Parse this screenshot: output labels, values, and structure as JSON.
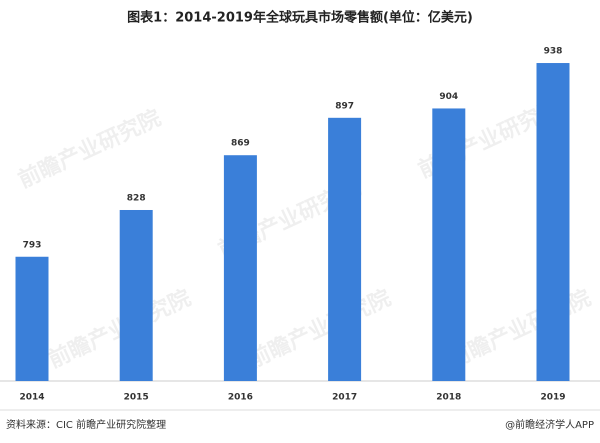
{
  "chart_data": {
    "type": "bar",
    "title": "图表1：2014-2019年全球玩具市场零售额(单位：亿美元)",
    "categories": [
      "2014",
      "2015",
      "2016",
      "2017",
      "2018",
      "2019"
    ],
    "values": [
      793,
      828,
      869,
      897,
      904,
      938
    ],
    "color": "#3a7fd9",
    "ylim": [
      700,
      950
    ],
    "source": "资料来源：CIC   前瞻产业研究院整理",
    "credit": "@前瞻经济学人APP",
    "watermark": "前瞻产业研究院"
  }
}
